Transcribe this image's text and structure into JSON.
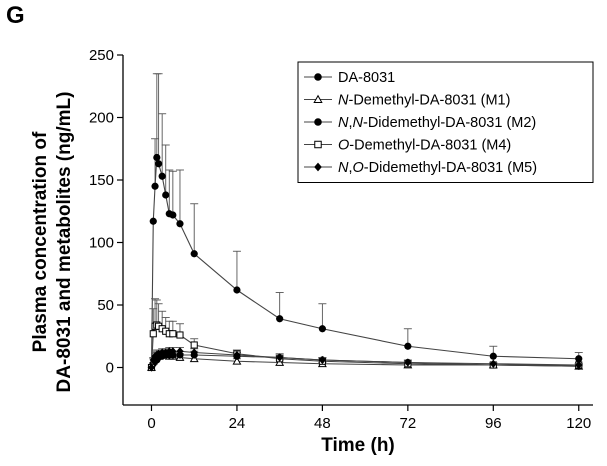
{
  "panel_label": "G",
  "chart_data": {
    "type": "line",
    "title": "",
    "xlabel": "Time (h)",
    "ylabel_line1": "Plasma concentration of",
    "ylabel_line2": "DA-8031 and metabolites (ng/mL)",
    "xlim": [
      -8,
      124
    ],
    "ylim": [
      -30,
      250
    ],
    "xticks": [
      0,
      24,
      48,
      72,
      96,
      120
    ],
    "yticks": [
      0,
      50,
      100,
      150,
      200,
      250
    ],
    "legend_position": "top-right",
    "x": [
      0,
      0.5,
      1,
      1.5,
      2,
      3,
      4,
      5,
      6,
      8,
      12,
      24,
      36,
      48,
      72,
      96,
      120
    ],
    "series": [
      {
        "name": "DA-8031",
        "name_parts": [
          [
            "DA-8031",
            false
          ]
        ],
        "marker": "filled-circle",
        "values": [
          0,
          117,
          145,
          168,
          163,
          153,
          138,
          123,
          122,
          115,
          91,
          62,
          39,
          31,
          17,
          9,
          7
        ],
        "errors": [
          0,
          0,
          38,
          67,
          72,
          50,
          40,
          35,
          35,
          43,
          40,
          31,
          21,
          20,
          14,
          8,
          5
        ]
      },
      {
        "name": "N-Demethyl-DA-8031 (M1)",
        "name_parts": [
          [
            "N",
            true
          ],
          [
            "-Demethyl-DA-8031 (M1)",
            false
          ]
        ],
        "marker": "open-triangle",
        "values": [
          0,
          5,
          8,
          10,
          10,
          10,
          10,
          9,
          9,
          8,
          7,
          5,
          4,
          3,
          2,
          2,
          1
        ],
        "errors": [
          0,
          2,
          3,
          4,
          4,
          4,
          4,
          3,
          3,
          3,
          3,
          2,
          2,
          1,
          1,
          1,
          1
        ]
      },
      {
        "name": "N,N-Didemethyl-DA-8031 (M2)",
        "name_parts": [
          [
            "N",
            true
          ],
          [
            ",",
            false
          ],
          [
            "N",
            true
          ],
          [
            "-Didemethyl-DA-8031 (M2)",
            false
          ]
        ],
        "marker": "filled-circle",
        "values": [
          0,
          3,
          5,
          6,
          8,
          9,
          10,
          10,
          10,
          10,
          10,
          9,
          8,
          6,
          4,
          2,
          1
        ],
        "errors": [
          0,
          1,
          2,
          2,
          3,
          3,
          3,
          3,
          3,
          3,
          3,
          3,
          3,
          2,
          2,
          1,
          1
        ]
      },
      {
        "name": "O-Demethyl-DA-8031 (M4)",
        "name_parts": [
          [
            "O",
            true
          ],
          [
            "-Demethyl-DA-8031 (M4)",
            false
          ]
        ],
        "marker": "open-square",
        "values": [
          0,
          27,
          33,
          34,
          33,
          31,
          29,
          27,
          27,
          26,
          18,
          11,
          7,
          5,
          3,
          2,
          2
        ],
        "errors": [
          0,
          20,
          22,
          20,
          18,
          14,
          11,
          10,
          10,
          9,
          5,
          3,
          2,
          2,
          1,
          1,
          1
        ]
      },
      {
        "name": "N,O-Didemethyl-DA-8031 (M5)",
        "name_parts": [
          [
            "N",
            true
          ],
          [
            ",",
            false
          ],
          [
            "O",
            true
          ],
          [
            "-Didemethyl-DA-8031 (M5)",
            false
          ]
        ],
        "marker": "filled-diamond",
        "values": [
          0,
          6,
          9,
          10,
          11,
          12,
          12,
          13,
          13,
          13,
          12,
          10,
          8,
          6,
          4,
          3,
          2
        ],
        "errors": [
          0,
          2,
          3,
          3,
          3,
          3,
          3,
          3,
          3,
          3,
          3,
          3,
          2,
          2,
          1,
          1,
          1
        ]
      }
    ]
  }
}
